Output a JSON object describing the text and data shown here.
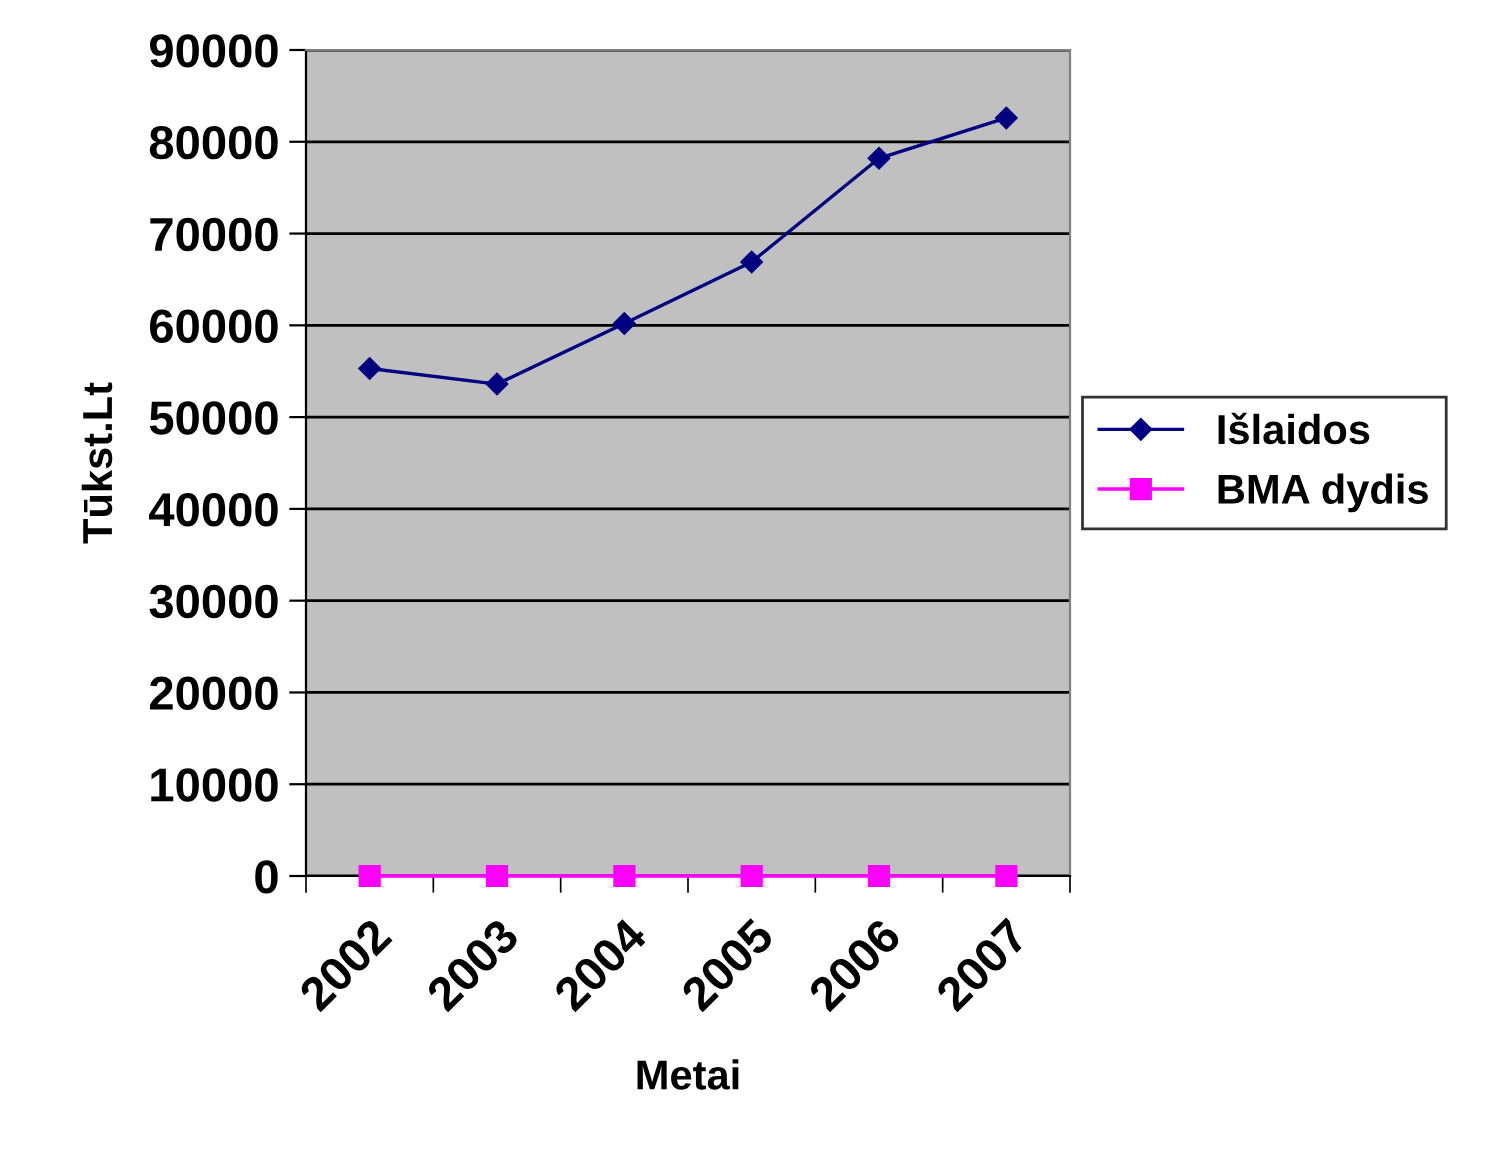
{
  "chart_data": {
    "type": "line",
    "xlabel": "Metai",
    "ylabel": "Tūkst.Lt",
    "categories": [
      "2002",
      "2003",
      "2004",
      "2005",
      "2006",
      "2007"
    ],
    "series": [
      {
        "name": "Išlaidos",
        "color": "#000080",
        "values": [
          55300,
          53600,
          60200,
          66900,
          78200,
          82600
        ],
        "marker": "diamond"
      },
      {
        "name": "BMA dydis",
        "color": "#ff00ff",
        "values": [
          0,
          0,
          0,
          0,
          0,
          0
        ],
        "marker": "square"
      }
    ],
    "ylim": [
      0,
      90000
    ],
    "yticks": [
      0,
      10000,
      20000,
      30000,
      40000,
      50000,
      60000,
      70000,
      80000,
      90000
    ],
    "grid": "y",
    "legend": "right",
    "line_style": "solid"
  }
}
